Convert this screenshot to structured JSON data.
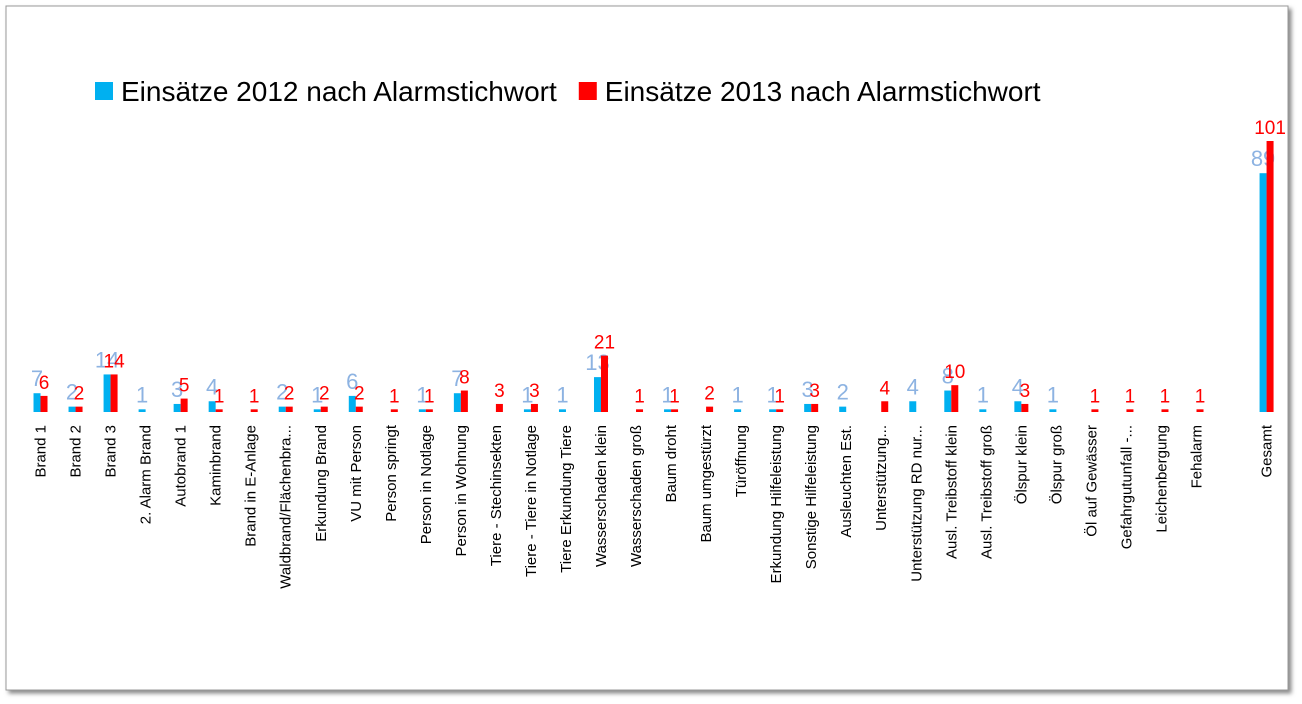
{
  "chart_data": {
    "type": "bar",
    "categories": [
      "Brand 1",
      "Brand 2",
      "Brand 3",
      "2. Alarm Brand",
      "Autobrand 1",
      "Kaminbrand",
      "Brand in E-Anlage",
      "Waldbrand/Flächenbra...",
      "Erkundung Brand",
      "VU mit Person",
      "Person springt",
      "Person in Notlage",
      "Person in Wohnung",
      "Tiere - Stechinsekten",
      "Tiere - Tiere in Notlage",
      "Tiere Erkundung Tiere",
      "Wasserschaden klein",
      "Wasserschaden groß",
      "Baum droht",
      "Baum umgestürzt",
      "Türöffnung",
      "Erkundung Hilfeleistung",
      "Sonstige Hilfeleistung",
      "Ausleuchten Est.",
      "Unterstützung...",
      "Unterstützung RD nur...",
      "Ausl. Treibstoff klein",
      "Ausl. Treibstoff groß",
      "Ölspur klein",
      "Ölspur groß",
      "Öl auf Gewässer",
      "Gefahrgutunfall -...",
      "Leichenbergung",
      "Fehalarm",
      null,
      "Gesamt"
    ],
    "series": [
      {
        "name": "Einsätze  2012 nach Alarmstichwort",
        "color": "#00b0f0",
        "label_color": "#8db3e2",
        "values": [
          7,
          2,
          14,
          1,
          3,
          4,
          null,
          2,
          1,
          6,
          null,
          1,
          7,
          null,
          1,
          1,
          13,
          null,
          1,
          null,
          1,
          1,
          3,
          2,
          null,
          4,
          8,
          1,
          4,
          1,
          null,
          null,
          null,
          null,
          null,
          89
        ]
      },
      {
        "name": "Einsätze 2013 nach Alarmstichwort",
        "color": "#ff0000",
        "label_color": "#ff0000",
        "values": [
          6,
          2,
          14,
          null,
          5,
          1,
          1,
          2,
          2,
          2,
          1,
          1,
          8,
          3,
          3,
          null,
          21,
          1,
          1,
          2,
          null,
          1,
          3,
          null,
          4,
          null,
          10,
          null,
          3,
          null,
          1,
          1,
          1,
          1,
          null,
          101
        ]
      }
    ],
    "legend": "top"
  }
}
